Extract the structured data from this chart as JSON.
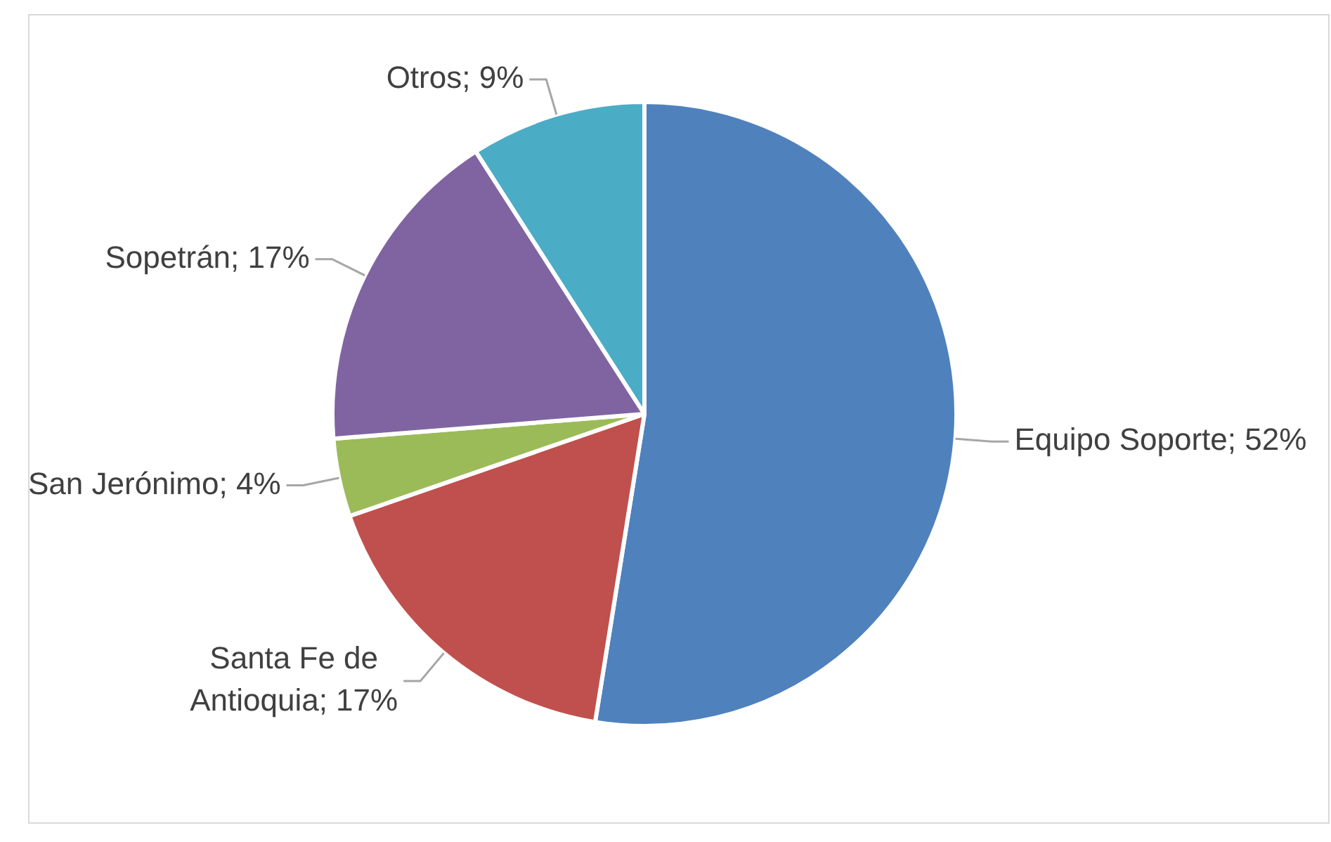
{
  "chart_data": {
    "type": "pie",
    "categories": [
      "Equipo Soporte",
      "Santa Fe de Antioquia",
      "San Jerónimo",
      "Sopetrán",
      "Otros"
    ],
    "values": [
      52,
      17,
      4,
      17,
      9
    ],
    "colors": [
      "#4f81bd",
      "#c0504d",
      "#9bbb59",
      "#8064a2",
      "#4bacc6"
    ],
    "value_labels": [
      "52%",
      "17%",
      "4%",
      "17%",
      "9%"
    ],
    "legend": false
  }
}
